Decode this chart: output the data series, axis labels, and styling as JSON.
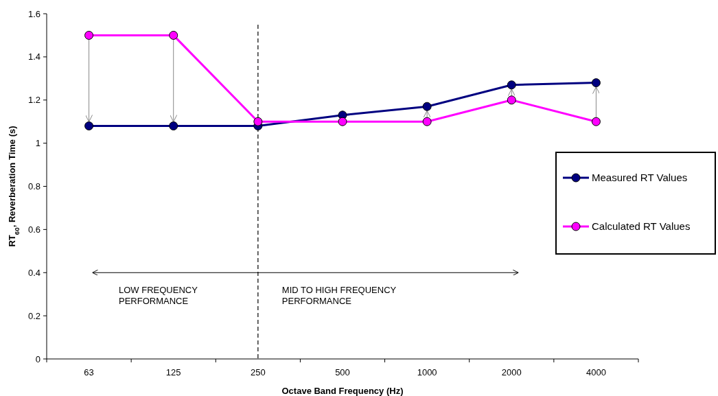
{
  "chart_data": {
    "type": "line",
    "xlabel": "Octave Band Frequency (Hz)",
    "ylabel": "RT$_{60}$, Reverberation Time (s)",
    "categories": [
      "63",
      "125",
      "250",
      "500",
      "1000",
      "2000",
      "4000"
    ],
    "series": [
      {
        "name": "Measured RT Values",
        "color": "#000080",
        "values": [
          1.08,
          1.08,
          1.08,
          1.13,
          1.17,
          1.27,
          1.28
        ]
      },
      {
        "name": "Calculated RT Values",
        "color": "#ff00ff",
        "values": [
          1.5,
          1.5,
          1.1,
          1.1,
          1.1,
          1.2,
          1.1
        ]
      }
    ],
    "ylim": [
      0,
      1.6
    ],
    "yticks": [
      0,
      {
        "value": 0.2,
        "label": "0.2"
      },
      {
        "value": 0.4,
        "label": "0.4"
      },
      {
        "value": 0.6,
        "label": "0.6"
      },
      {
        "value": 0.8,
        "label": "0.8"
      },
      1,
      {
        "value": 1.2,
        "label": "1.2"
      },
      {
        "value": 1.4,
        "label": "1.4"
      },
      {
        "value": 1.6,
        "label": "1.6"
      }
    ],
    "ref_lines": [
      {
        "axis": "x",
        "value": "250",
        "color": "#000000",
        "line_style": "dashed"
      }
    ],
    "annotations": [
      "LOW FREQUENCY PERFORMANCE",
      "MID TO HIGH FREQUENCY PERFORMANCE"
    ],
    "marker": "circle",
    "line_style": "solid",
    "grid": false,
    "legend": "right"
  }
}
